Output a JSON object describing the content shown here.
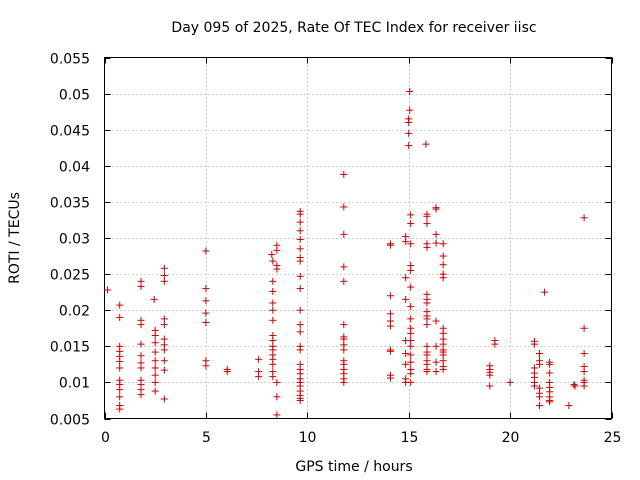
{
  "chart_data": {
    "type": "scatter",
    "title": "Day 095 of 2025, Rate Of TEC Index for receiver iisc",
    "xlabel": "GPS time / hours",
    "ylabel": "ROTI / TECUs",
    "xlim": [
      0,
      25
    ],
    "ylim": [
      0.005,
      0.055
    ],
    "xticks": [
      0,
      5,
      10,
      15,
      20,
      25
    ],
    "yticks": [
      0.005,
      0.01,
      0.015,
      0.02,
      0.025,
      0.03,
      0.035,
      0.04,
      0.045,
      0.05,
      0.055
    ],
    "x_tick_labels": [
      "0",
      "5",
      "10",
      "15",
      "20",
      "25"
    ],
    "y_tick_labels": [
      "0.005",
      "0.01",
      "0.015",
      "0.02",
      "0.025",
      "0.03",
      "0.035",
      "0.04",
      "0.045",
      "0.05",
      "0.055"
    ],
    "grid": true,
    "marker": "+",
    "marker_color": "#d00000",
    "series": [
      {
        "name": "ROTI",
        "points": [
          [
            0.15,
            0.0228
          ],
          [
            0.75,
            0.0207
          ],
          [
            0.75,
            0.019
          ],
          [
            0.75,
            0.015
          ],
          [
            0.75,
            0.0143
          ],
          [
            0.75,
            0.0136
          ],
          [
            0.75,
            0.0129
          ],
          [
            0.75,
            0.012
          ],
          [
            0.75,
            0.0103
          ],
          [
            0.75,
            0.0097
          ],
          [
            0.75,
            0.009
          ],
          [
            0.75,
            0.008
          ],
          [
            0.75,
            0.0068
          ],
          [
            0.75,
            0.0063
          ],
          [
            1.8,
            0.024
          ],
          [
            1.8,
            0.0233
          ],
          [
            1.8,
            0.0186
          ],
          [
            1.8,
            0.018
          ],
          [
            1.8,
            0.0153
          ],
          [
            1.8,
            0.0137
          ],
          [
            1.8,
            0.0127
          ],
          [
            1.8,
            0.012
          ],
          [
            1.8,
            0.0103
          ],
          [
            1.8,
            0.0097
          ],
          [
            1.8,
            0.009
          ],
          [
            1.8,
            0.0083
          ],
          [
            2.45,
            0.0215
          ],
          [
            2.5,
            0.0172
          ],
          [
            2.5,
            0.0165
          ],
          [
            2.5,
            0.0155
          ],
          [
            2.5,
            0.0142
          ],
          [
            2.5,
            0.013
          ],
          [
            2.5,
            0.012
          ],
          [
            2.5,
            0.011
          ],
          [
            2.5,
            0.01
          ],
          [
            2.5,
            0.0088
          ],
          [
            2.95,
            0.0258
          ],
          [
            2.95,
            0.0248
          ],
          [
            2.95,
            0.024
          ],
          [
            2.95,
            0.0188
          ],
          [
            2.95,
            0.018
          ],
          [
            2.95,
            0.016
          ],
          [
            2.95,
            0.0152
          ],
          [
            2.95,
            0.0145
          ],
          [
            2.95,
            0.013
          ],
          [
            2.95,
            0.0117
          ],
          [
            2.95,
            0.0077
          ],
          [
            5.0,
            0.0282
          ],
          [
            5.0,
            0.023
          ],
          [
            5.0,
            0.0213
          ],
          [
            5.0,
            0.0196
          ],
          [
            5.0,
            0.0183
          ],
          [
            5.0,
            0.013
          ],
          [
            5.0,
            0.0123
          ],
          [
            6.05,
            0.0118
          ],
          [
            6.05,
            0.0115
          ],
          [
            7.6,
            0.0132
          ],
          [
            7.6,
            0.0115
          ],
          [
            7.6,
            0.0108
          ],
          [
            8.25,
            0.0277
          ],
          [
            8.3,
            0.0268
          ],
          [
            8.3,
            0.024
          ],
          [
            8.3,
            0.0226
          ],
          [
            8.3,
            0.021
          ],
          [
            8.3,
            0.02
          ],
          [
            8.3,
            0.0186
          ],
          [
            8.3,
            0.0165
          ],
          [
            8.3,
            0.0158
          ],
          [
            8.3,
            0.015
          ],
          [
            8.3,
            0.0145
          ],
          [
            8.3,
            0.0138
          ],
          [
            8.3,
            0.0132
          ],
          [
            8.3,
            0.0125
          ],
          [
            8.3,
            0.0115
          ],
          [
            8.3,
            0.0108
          ],
          [
            8.5,
            0.029
          ],
          [
            8.5,
            0.0283
          ],
          [
            8.5,
            0.0262
          ],
          [
            8.5,
            0.0257
          ],
          [
            8.5,
            0.01
          ],
          [
            8.5,
            0.008
          ],
          [
            8.5,
            0.0055
          ],
          [
            9.65,
            0.0337
          ],
          [
            9.65,
            0.0333
          ],
          [
            9.65,
            0.0322
          ],
          [
            9.65,
            0.031
          ],
          [
            9.65,
            0.0298
          ],
          [
            9.65,
            0.0285
          ],
          [
            9.65,
            0.0273
          ],
          [
            9.65,
            0.0268
          ],
          [
            9.65,
            0.0247
          ],
          [
            9.65,
            0.023
          ],
          [
            9.65,
            0.02
          ],
          [
            9.65,
            0.018
          ],
          [
            9.65,
            0.017
          ],
          [
            9.65,
            0.015
          ],
          [
            9.65,
            0.0145
          ],
          [
            9.65,
            0.0125
          ],
          [
            9.65,
            0.0118
          ],
          [
            9.65,
            0.0112
          ],
          [
            9.65,
            0.0105
          ],
          [
            9.65,
            0.01
          ],
          [
            9.65,
            0.0095
          ],
          [
            9.65,
            0.0088
          ],
          [
            9.65,
            0.0082
          ],
          [
            9.65,
            0.0078
          ],
          [
            9.65,
            0.0075
          ],
          [
            11.8,
            0.0388
          ],
          [
            11.8,
            0.0343
          ],
          [
            11.8,
            0.0305
          ],
          [
            11.8,
            0.026
          ],
          [
            11.8,
            0.024
          ],
          [
            11.8,
            0.018
          ],
          [
            11.8,
            0.0163
          ],
          [
            11.8,
            0.016
          ],
          [
            11.8,
            0.0152
          ],
          [
            11.8,
            0.0145
          ],
          [
            11.8,
            0.013
          ],
          [
            11.8,
            0.0125
          ],
          [
            11.8,
            0.0118
          ],
          [
            11.8,
            0.0112
          ],
          [
            11.8,
            0.0105
          ],
          [
            11.8,
            0.01
          ],
          [
            14.1,
            0.0292
          ],
          [
            14.1,
            0.029
          ],
          [
            14.1,
            0.022
          ],
          [
            14.1,
            0.0195
          ],
          [
            14.1,
            0.0185
          ],
          [
            14.1,
            0.0178
          ],
          [
            14.1,
            0.0145
          ],
          [
            14.1,
            0.0143
          ],
          [
            14.1,
            0.011
          ],
          [
            14.1,
            0.0106
          ],
          [
            14.85,
            0.0302
          ],
          [
            14.85,
            0.0295
          ],
          [
            14.85,
            0.0245
          ],
          [
            14.85,
            0.0215
          ],
          [
            14.85,
            0.0158
          ],
          [
            14.85,
            0.014
          ],
          [
            14.85,
            0.0125
          ],
          [
            14.85,
            0.0105
          ],
          [
            14.85,
            0.01
          ],
          [
            15.05,
            0.0503
          ],
          [
            15.05,
            0.0477
          ],
          [
            15.0,
            0.0465
          ],
          [
            15.0,
            0.046
          ],
          [
            15.0,
            0.0445
          ],
          [
            15.0,
            0.0428
          ],
          [
            15.1,
            0.0332
          ],
          [
            15.1,
            0.032
          ],
          [
            15.1,
            0.0292
          ],
          [
            15.1,
            0.0262
          ],
          [
            15.1,
            0.0255
          ],
          [
            15.1,
            0.0232
          ],
          [
            15.1,
            0.0205
          ],
          [
            15.1,
            0.0188
          ],
          [
            15.1,
            0.0175
          ],
          [
            15.1,
            0.0168
          ],
          [
            15.1,
            0.0158
          ],
          [
            15.1,
            0.015
          ],
          [
            15.1,
            0.0138
          ],
          [
            15.1,
            0.0128
          ],
          [
            15.1,
            0.0118
          ],
          [
            15.1,
            0.0112
          ],
          [
            15.1,
            0.01
          ],
          [
            15.85,
            0.043
          ],
          [
            15.9,
            0.0333
          ],
          [
            15.9,
            0.033
          ],
          [
            15.9,
            0.032
          ],
          [
            15.9,
            0.0292
          ],
          [
            15.9,
            0.0287
          ],
          [
            15.9,
            0.0222
          ],
          [
            15.9,
            0.0215
          ],
          [
            15.9,
            0.021
          ],
          [
            15.9,
            0.0198
          ],
          [
            15.9,
            0.0192
          ],
          [
            15.9,
            0.0188
          ],
          [
            15.9,
            0.018
          ],
          [
            15.9,
            0.015
          ],
          [
            15.9,
            0.0142
          ],
          [
            15.9,
            0.0138
          ],
          [
            15.9,
            0.013
          ],
          [
            15.9,
            0.0125
          ],
          [
            15.9,
            0.0118
          ],
          [
            15.9,
            0.0115
          ],
          [
            16.35,
            0.0342
          ],
          [
            16.35,
            0.034
          ],
          [
            16.35,
            0.0305
          ],
          [
            16.35,
            0.0293
          ],
          [
            16.35,
            0.0185
          ],
          [
            16.35,
            0.015
          ],
          [
            16.35,
            0.0128
          ],
          [
            16.35,
            0.0115
          ],
          [
            16.7,
            0.0292
          ],
          [
            16.7,
            0.0275
          ],
          [
            16.7,
            0.0263
          ],
          [
            16.7,
            0.025
          ],
          [
            16.7,
            0.0245
          ],
          [
            16.7,
            0.0175
          ],
          [
            16.7,
            0.0168
          ],
          [
            16.7,
            0.016
          ],
          [
            16.7,
            0.0153
          ],
          [
            16.7,
            0.0145
          ],
          [
            16.7,
            0.0142
          ],
          [
            16.7,
            0.0138
          ],
          [
            16.7,
            0.013
          ],
          [
            16.7,
            0.0122
          ],
          [
            16.7,
            0.0118
          ],
          [
            19.0,
            0.0123
          ],
          [
            19.0,
            0.0118
          ],
          [
            19.0,
            0.0114
          ],
          [
            19.0,
            0.011
          ],
          [
            19.0,
            0.0095
          ],
          [
            19.25,
            0.0158
          ],
          [
            19.25,
            0.0153
          ],
          [
            20.0,
            0.01
          ],
          [
            21.2,
            0.0157
          ],
          [
            21.2,
            0.0153
          ],
          [
            21.2,
            0.012
          ],
          [
            21.2,
            0.0113
          ],
          [
            21.2,
            0.0107
          ],
          [
            21.2,
            0.01
          ],
          [
            21.2,
            0.0095
          ],
          [
            21.45,
            0.014
          ],
          [
            21.45,
            0.013
          ],
          [
            21.45,
            0.0125
          ],
          [
            21.45,
            0.0092
          ],
          [
            21.45,
            0.0085
          ],
          [
            21.45,
            0.008
          ],
          [
            21.45,
            0.0068
          ],
          [
            21.7,
            0.0225
          ],
          [
            21.95,
            0.0128
          ],
          [
            21.95,
            0.0125
          ],
          [
            21.95,
            0.0113
          ],
          [
            21.95,
            0.01
          ],
          [
            21.95,
            0.0093
          ],
          [
            21.95,
            0.0087
          ],
          [
            21.95,
            0.008
          ],
          [
            21.95,
            0.0075
          ],
          [
            21.95,
            0.0073
          ],
          [
            22.9,
            0.0068
          ],
          [
            23.15,
            0.0097
          ],
          [
            23.2,
            0.0095
          ],
          [
            23.65,
            0.0328
          ],
          [
            23.65,
            0.0175
          ],
          [
            23.65,
            0.014
          ],
          [
            23.65,
            0.0122
          ],
          [
            23.65,
            0.0115
          ],
          [
            23.65,
            0.0103
          ],
          [
            23.65,
            0.01
          ],
          [
            23.65,
            0.0095
          ]
        ]
      }
    ]
  }
}
